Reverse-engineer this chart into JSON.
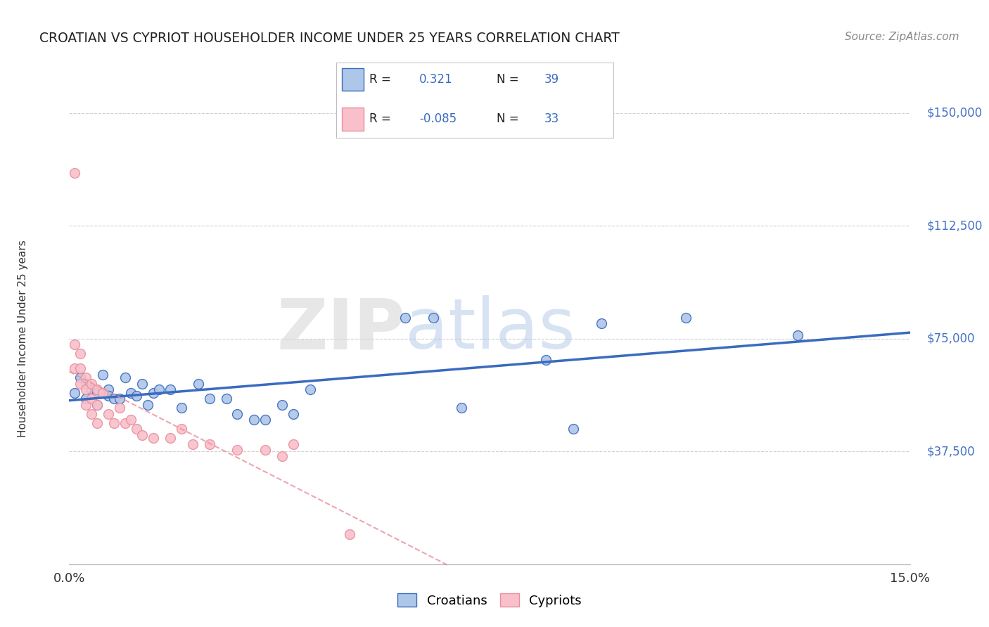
{
  "title": "CROATIAN VS CYPRIOT HOUSEHOLDER INCOME UNDER 25 YEARS CORRELATION CHART",
  "source": "Source: ZipAtlas.com",
  "ylabel": "Householder Income Under 25 years",
  "xlim": [
    0.0,
    0.15
  ],
  "ylim": [
    0,
    150000
  ],
  "yticks": [
    0,
    37500,
    75000,
    112500,
    150000
  ],
  "ytick_labels": [
    "",
    "$37,500",
    "$75,000",
    "$112,500",
    "$150,000"
  ],
  "croatian_R": "0.321",
  "croatian_N": "39",
  "cypriot_R": "-0.085",
  "cypriot_N": "33",
  "croatian_color": "#aec6e8",
  "cypriot_color": "#f9c0cb",
  "croatian_line_color": "#3a6bbf",
  "cypriot_line_color": "#e8909e",
  "background_color": "#ffffff",
  "grid_color": "#d0d0d0",
  "title_color": "#222222",
  "axis_label_color": "#333333",
  "ytick_color": "#4472c4",
  "watermark_zip": "ZIP",
  "watermark_atlas": "atlas",
  "croatian_x": [
    0.001,
    0.002,
    0.003,
    0.003,
    0.004,
    0.005,
    0.005,
    0.006,
    0.006,
    0.007,
    0.007,
    0.008,
    0.009,
    0.01,
    0.011,
    0.012,
    0.013,
    0.014,
    0.015,
    0.016,
    0.018,
    0.02,
    0.023,
    0.025,
    0.028,
    0.03,
    0.033,
    0.035,
    0.038,
    0.04,
    0.043,
    0.06,
    0.065,
    0.07,
    0.085,
    0.09,
    0.095,
    0.11,
    0.13
  ],
  "croatian_y": [
    57000,
    62000,
    55000,
    60000,
    58000,
    57000,
    53000,
    63000,
    57000,
    58000,
    56000,
    55000,
    55000,
    62000,
    57000,
    56000,
    60000,
    53000,
    57000,
    58000,
    58000,
    52000,
    60000,
    55000,
    55000,
    50000,
    48000,
    48000,
    53000,
    50000,
    58000,
    82000,
    82000,
    52000,
    68000,
    45000,
    80000,
    82000,
    76000
  ],
  "cypriot_x": [
    0.001,
    0.001,
    0.001,
    0.002,
    0.002,
    0.002,
    0.003,
    0.003,
    0.003,
    0.004,
    0.004,
    0.004,
    0.005,
    0.005,
    0.005,
    0.006,
    0.007,
    0.008,
    0.009,
    0.01,
    0.011,
    0.012,
    0.013,
    0.015,
    0.018,
    0.02,
    0.022,
    0.025,
    0.03,
    0.035,
    0.038,
    0.04,
    0.05
  ],
  "cypriot_y": [
    130000,
    73000,
    65000,
    70000,
    65000,
    60000,
    62000,
    58000,
    53000,
    60000,
    55000,
    50000,
    58000,
    53000,
    47000,
    57000,
    50000,
    47000,
    52000,
    47000,
    48000,
    45000,
    43000,
    42000,
    42000,
    45000,
    40000,
    40000,
    38000,
    38000,
    36000,
    40000,
    10000
  ]
}
